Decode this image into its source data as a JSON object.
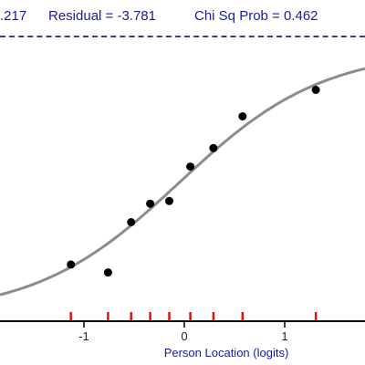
{
  "header": {
    "item1": ".217",
    "item2": "Residual = -3.781",
    "item3": "Chi Sq Prob = 0.462"
  },
  "chart_data": {
    "type": "scatter",
    "xlabel": "Person Location (logits)",
    "xlim": [
      -1.75,
      1.75
    ],
    "ylim": [
      0,
      1
    ],
    "x_ticks": [
      -1,
      0,
      1
    ],
    "x_tick_labels": [
      "-1",
      "0",
      "1"
    ],
    "curve": {
      "type": "logistic",
      "location": -0.05,
      "slope": 1.4
    },
    "class_intervals": [
      -1.13,
      -0.76,
      -0.53,
      -0.34,
      -0.15,
      0.06,
      0.29,
      0.58,
      1.31
    ],
    "points": [
      {
        "x": -1.13,
        "y": 0.19
      },
      {
        "x": -0.76,
        "y": 0.16
      },
      {
        "x": -0.53,
        "y": 0.35
      },
      {
        "x": -0.34,
        "y": 0.42
      },
      {
        "x": -0.15,
        "y": 0.43
      },
      {
        "x": 0.06,
        "y": 0.56
      },
      {
        "x": 0.29,
        "y": 0.63
      },
      {
        "x": 0.58,
        "y": 0.75
      },
      {
        "x": 1.31,
        "y": 0.85
      }
    ],
    "colors": {
      "curve": "#8c8c8c",
      "points": "#000000",
      "marks": "#e01010",
      "text": "#1a1aa6"
    }
  }
}
